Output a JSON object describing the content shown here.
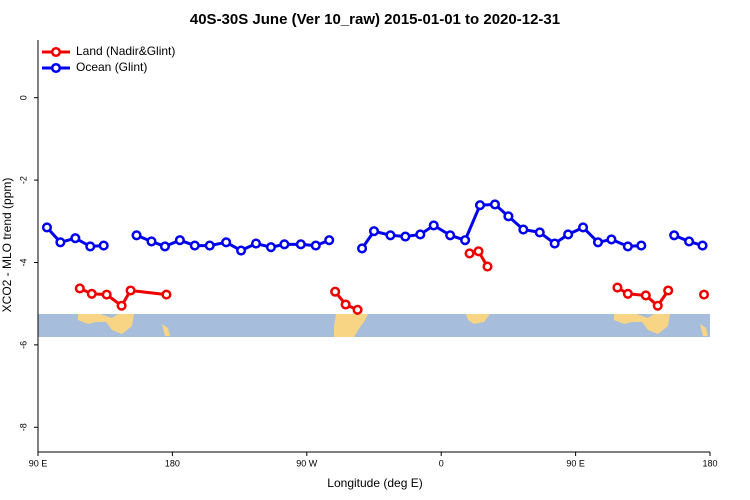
{
  "chart_data": {
    "type": "line",
    "title": "40S-30S June (Ver 10_raw)   2015-01-01 to 2020-12-31",
    "x_label": "Longitude (deg E)",
    "y_label": "XCO2 - MLO trend (ppm)",
    "xlim": [
      90,
      540
    ],
    "xticks": [
      {
        "value": 90,
        "label": "90 E"
      },
      180,
      {
        "value": 270,
        "label": "90 W"
      },
      {
        "value": 360,
        "label": "0"
      },
      {
        "value": 450,
        "label": "90 E"
      },
      {
        "value": 540,
        "label": "180"
      }
    ],
    "ylim": [
      -8.6,
      1.4
    ],
    "yticks": [
      0,
      -2,
      -4,
      -6,
      -8
    ],
    "legend": "top-left",
    "series": [
      {
        "name": "Land (Nadir&Glint)",
        "color": "#ee0000",
        "x": [
          118,
          126,
          136,
          146,
          152,
          176,
          230,
          289,
          296,
          304,
          340,
          379,
          385,
          391,
          440,
          478,
          485,
          497,
          505,
          512,
          524,
          536
        ],
        "values": [
          -4.63,
          -4.76,
          -4.78,
          -5.05,
          -4.68,
          -4.78,
          null,
          -4.71,
          -5.02,
          -5.15,
          null,
          -3.78,
          -3.73,
          -4.1,
          null,
          -4.61,
          -4.76,
          -4.8,
          -5.05,
          -4.68,
          null,
          -4.78
        ]
      },
      {
        "name": "Ocean (Glint)",
        "color": "#0000ee",
        "x": [
          96,
          105,
          115,
          125,
          134,
          145,
          156,
          166,
          175,
          185,
          195,
          205,
          216,
          226,
          236,
          246,
          255,
          266,
          276,
          285,
          296,
          307,
          315,
          326,
          336,
          346,
          355,
          366,
          376,
          386,
          396,
          405,
          415,
          426,
          436,
          445,
          455,
          465,
          474,
          485,
          494,
          505,
          516,
          526,
          535
        ],
        "values": [
          -3.15,
          -3.51,
          -3.41,
          -3.61,
          -3.59,
          null,
          -3.34,
          -3.49,
          -3.61,
          -3.46,
          -3.59,
          -3.59,
          -3.51,
          -3.71,
          -3.54,
          -3.63,
          -3.56,
          -3.56,
          -3.59,
          -3.46,
          null,
          -3.66,
          -3.24,
          -3.34,
          -3.37,
          -3.32,
          -3.1,
          -3.34,
          -3.46,
          -2.61,
          -2.59,
          -2.88,
          -3.2,
          -3.27,
          -3.54,
          -3.32,
          -3.15,
          -3.51,
          -3.44,
          -3.61,
          -3.59,
          null,
          -3.34,
          -3.49,
          -3.59
        ]
      }
    ]
  }
}
